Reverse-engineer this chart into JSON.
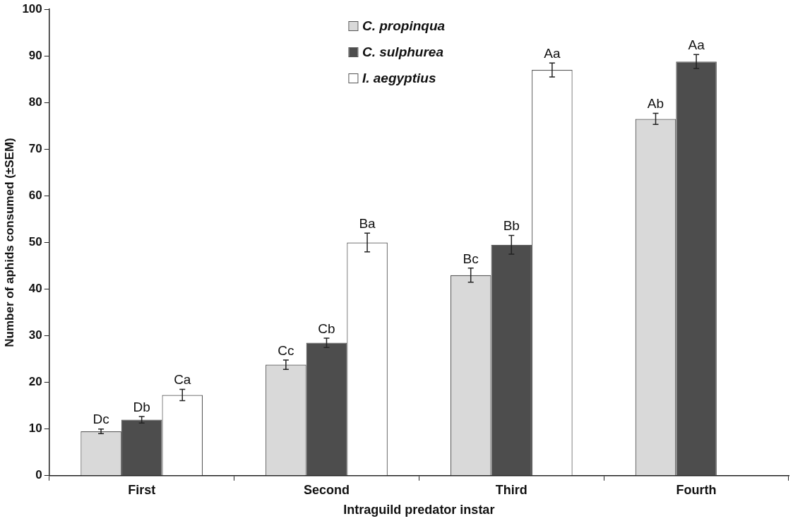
{
  "chart_data": {
    "type": "bar",
    "xlabel": "Intraguild predator instar",
    "ylabel": "Number of aphids consumed (±SEM)",
    "categories": [
      "First",
      "Second",
      "Third",
      "Fourth"
    ],
    "series": [
      {
        "name": "C. propinqua",
        "color": "#d9d9d9",
        "values": [
          9.5,
          23.8,
          43,
          76.5
        ],
        "errors": [
          0.5,
          1,
          1.5,
          1.2
        ],
        "value_labels": [
          "Dc",
          "Cc",
          "Bc",
          "Ab"
        ]
      },
      {
        "name": "C. sulphurea",
        "color": "#4d4d4d",
        "values": [
          12,
          28.5,
          49.5,
          88.8
        ],
        "errors": [
          0.7,
          1,
          2,
          1.5
        ],
        "value_labels": [
          "Db",
          "Cb",
          "Bb",
          "Aa"
        ]
      },
      {
        "name": "I. aegyptius",
        "color": "#ffffff",
        "values": [
          17.3,
          50,
          87,
          null
        ],
        "errors": [
          1.2,
          2,
          1.5,
          null
        ],
        "value_labels": [
          "Ca",
          "Ba",
          "Aa",
          null
        ]
      }
    ],
    "ylim": [
      0,
      100
    ],
    "yticks": [
      0,
      10,
      20,
      30,
      40,
      50,
      60,
      70,
      80,
      90,
      100
    ],
    "grid": false,
    "legend": "top"
  }
}
